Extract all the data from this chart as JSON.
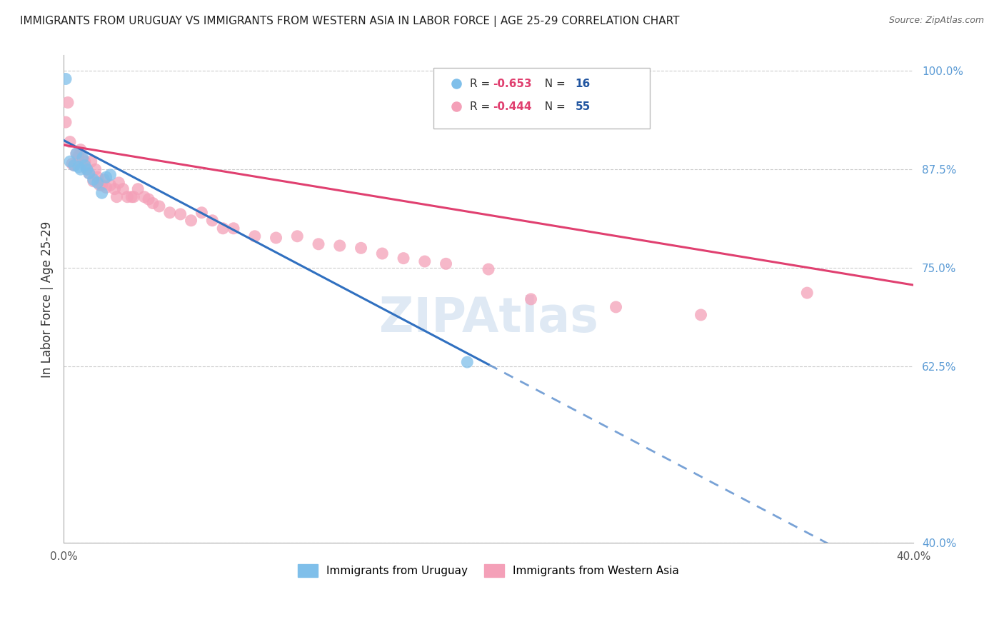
{
  "title": "IMMIGRANTS FROM URUGUAY VS IMMIGRANTS FROM WESTERN ASIA IN LABOR FORCE | AGE 25-29 CORRELATION CHART",
  "source": "Source: ZipAtlas.com",
  "ylabel": "In Labor Force | Age 25-29",
  "xlim": [
    0.0,
    0.4
  ],
  "ylim": [
    0.4,
    1.02
  ],
  "right_yticks": [
    1.0,
    0.875,
    0.75,
    0.625,
    0.4
  ],
  "right_yticklabels": [
    "100.0%",
    "87.5%",
    "75.0%",
    "62.5%",
    "40.0%"
  ],
  "bottom_xticks": [
    0.0,
    0.05,
    0.1,
    0.15,
    0.2,
    0.25,
    0.3,
    0.35,
    0.4
  ],
  "bottom_xticklabels": [
    "0.0%",
    "",
    "",
    "",
    "",
    "",
    "",
    "",
    "40.0%"
  ],
  "blue_color": "#7fbfea",
  "pink_color": "#f4a0b8",
  "blue_line_color": "#3070c0",
  "pink_line_color": "#e04070",
  "watermark": "ZIPAtlas",
  "grid_color": "#cccccc",
  "background_color": "#ffffff",
  "uruguay_x": [
    0.001,
    0.003,
    0.005,
    0.006,
    0.007,
    0.008,
    0.009,
    0.01,
    0.011,
    0.012,
    0.014,
    0.016,
    0.018,
    0.02,
    0.022,
    0.19
  ],
  "uruguay_y": [
    0.99,
    0.885,
    0.88,
    0.895,
    0.878,
    0.875,
    0.89,
    0.88,
    0.875,
    0.87,
    0.862,
    0.858,
    0.845,
    0.865,
    0.868,
    0.63
  ],
  "western_x": [
    0.001,
    0.002,
    0.003,
    0.004,
    0.005,
    0.006,
    0.007,
    0.008,
    0.009,
    0.01,
    0.011,
    0.012,
    0.013,
    0.014,
    0.015,
    0.016,
    0.017,
    0.018,
    0.019,
    0.02,
    0.022,
    0.024,
    0.025,
    0.026,
    0.028,
    0.03,
    0.032,
    0.033,
    0.035,
    0.038,
    0.04,
    0.042,
    0.045,
    0.05,
    0.055,
    0.06,
    0.065,
    0.07,
    0.075,
    0.08,
    0.09,
    0.1,
    0.11,
    0.12,
    0.13,
    0.14,
    0.15,
    0.16,
    0.17,
    0.18,
    0.2,
    0.22,
    0.26,
    0.3,
    0.35
  ],
  "western_y": [
    0.935,
    0.96,
    0.91,
    0.882,
    0.88,
    0.895,
    0.892,
    0.9,
    0.888,
    0.885,
    0.875,
    0.87,
    0.885,
    0.86,
    0.875,
    0.865,
    0.855,
    0.855,
    0.862,
    0.852,
    0.855,
    0.85,
    0.84,
    0.858,
    0.85,
    0.84,
    0.84,
    0.84,
    0.85,
    0.84,
    0.837,
    0.832,
    0.828,
    0.82,
    0.818,
    0.81,
    0.82,
    0.81,
    0.8,
    0.8,
    0.79,
    0.788,
    0.79,
    0.78,
    0.778,
    0.775,
    0.768,
    0.762,
    0.758,
    0.755,
    0.748,
    0.71,
    0.7,
    0.69,
    0.718
  ],
  "blue_R": -0.653,
  "blue_N": 16,
  "pink_R": -0.444,
  "pink_N": 55,
  "uru_line_x0": 0.0,
  "uru_line_y0": 0.912,
  "uru_line_x1": 0.2,
  "uru_line_y1": 0.627,
  "wes_line_x0": 0.0,
  "wes_line_y0": 0.906,
  "wes_line_x1": 0.4,
  "wes_line_y1": 0.728
}
